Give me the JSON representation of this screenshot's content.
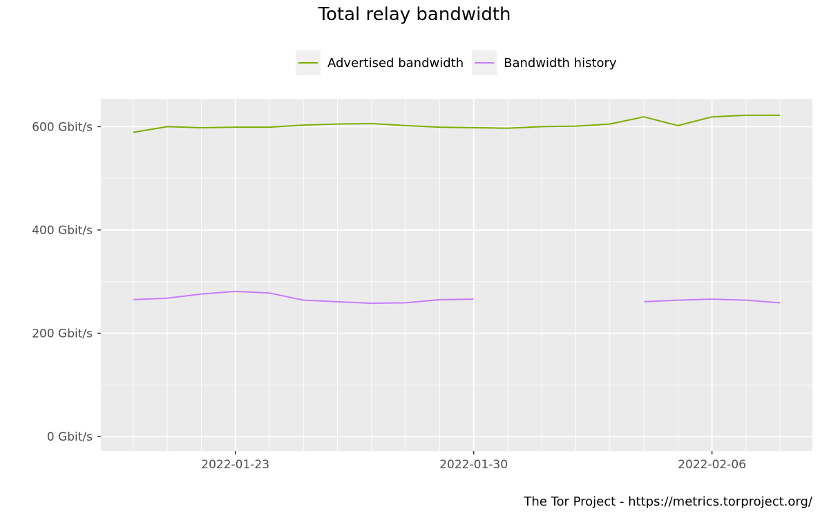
{
  "chart_data": {
    "type": "line",
    "title": "Total relay bandwidth",
    "caption": "The Tor Project - https://metrics.torproject.org/",
    "xlabel": "",
    "ylabel": "",
    "x": [
      "2022-01-20",
      "2022-01-21",
      "2022-01-22",
      "2022-01-23",
      "2022-01-24",
      "2022-01-25",
      "2022-01-26",
      "2022-01-27",
      "2022-01-28",
      "2022-01-29",
      "2022-01-30",
      "2022-01-31",
      "2022-02-01",
      "2022-02-02",
      "2022-02-03",
      "2022-02-04",
      "2022-02-05",
      "2022-02-06",
      "2022-02-07",
      "2022-02-08"
    ],
    "x_ticks": [
      "2022-01-23",
      "2022-01-30",
      "2022-02-06"
    ],
    "y_ticks": [
      0,
      200,
      400,
      600
    ],
    "y_tick_labels": [
      "0 Gbit/s",
      "200 Gbit/s",
      "400 Gbit/s",
      "600 Gbit/s"
    ],
    "ylim": [
      -28,
      654
    ],
    "grid": true,
    "legend_position": "top",
    "series": [
      {
        "name": "Advertised bandwidth",
        "color": "#7cae00",
        "values": [
          589,
          600,
          598,
          599,
          599,
          603,
          605,
          606,
          602,
          599,
          598,
          597,
          600,
          601,
          605,
          619,
          602,
          619,
          622,
          622
        ]
      },
      {
        "name": "Bandwidth history",
        "color": "#c77cff",
        "values": [
          265,
          268,
          276,
          281,
          278,
          264,
          261,
          258,
          259,
          265,
          266,
          null,
          null,
          null,
          null,
          261,
          264,
          266,
          264,
          259
        ]
      }
    ]
  }
}
